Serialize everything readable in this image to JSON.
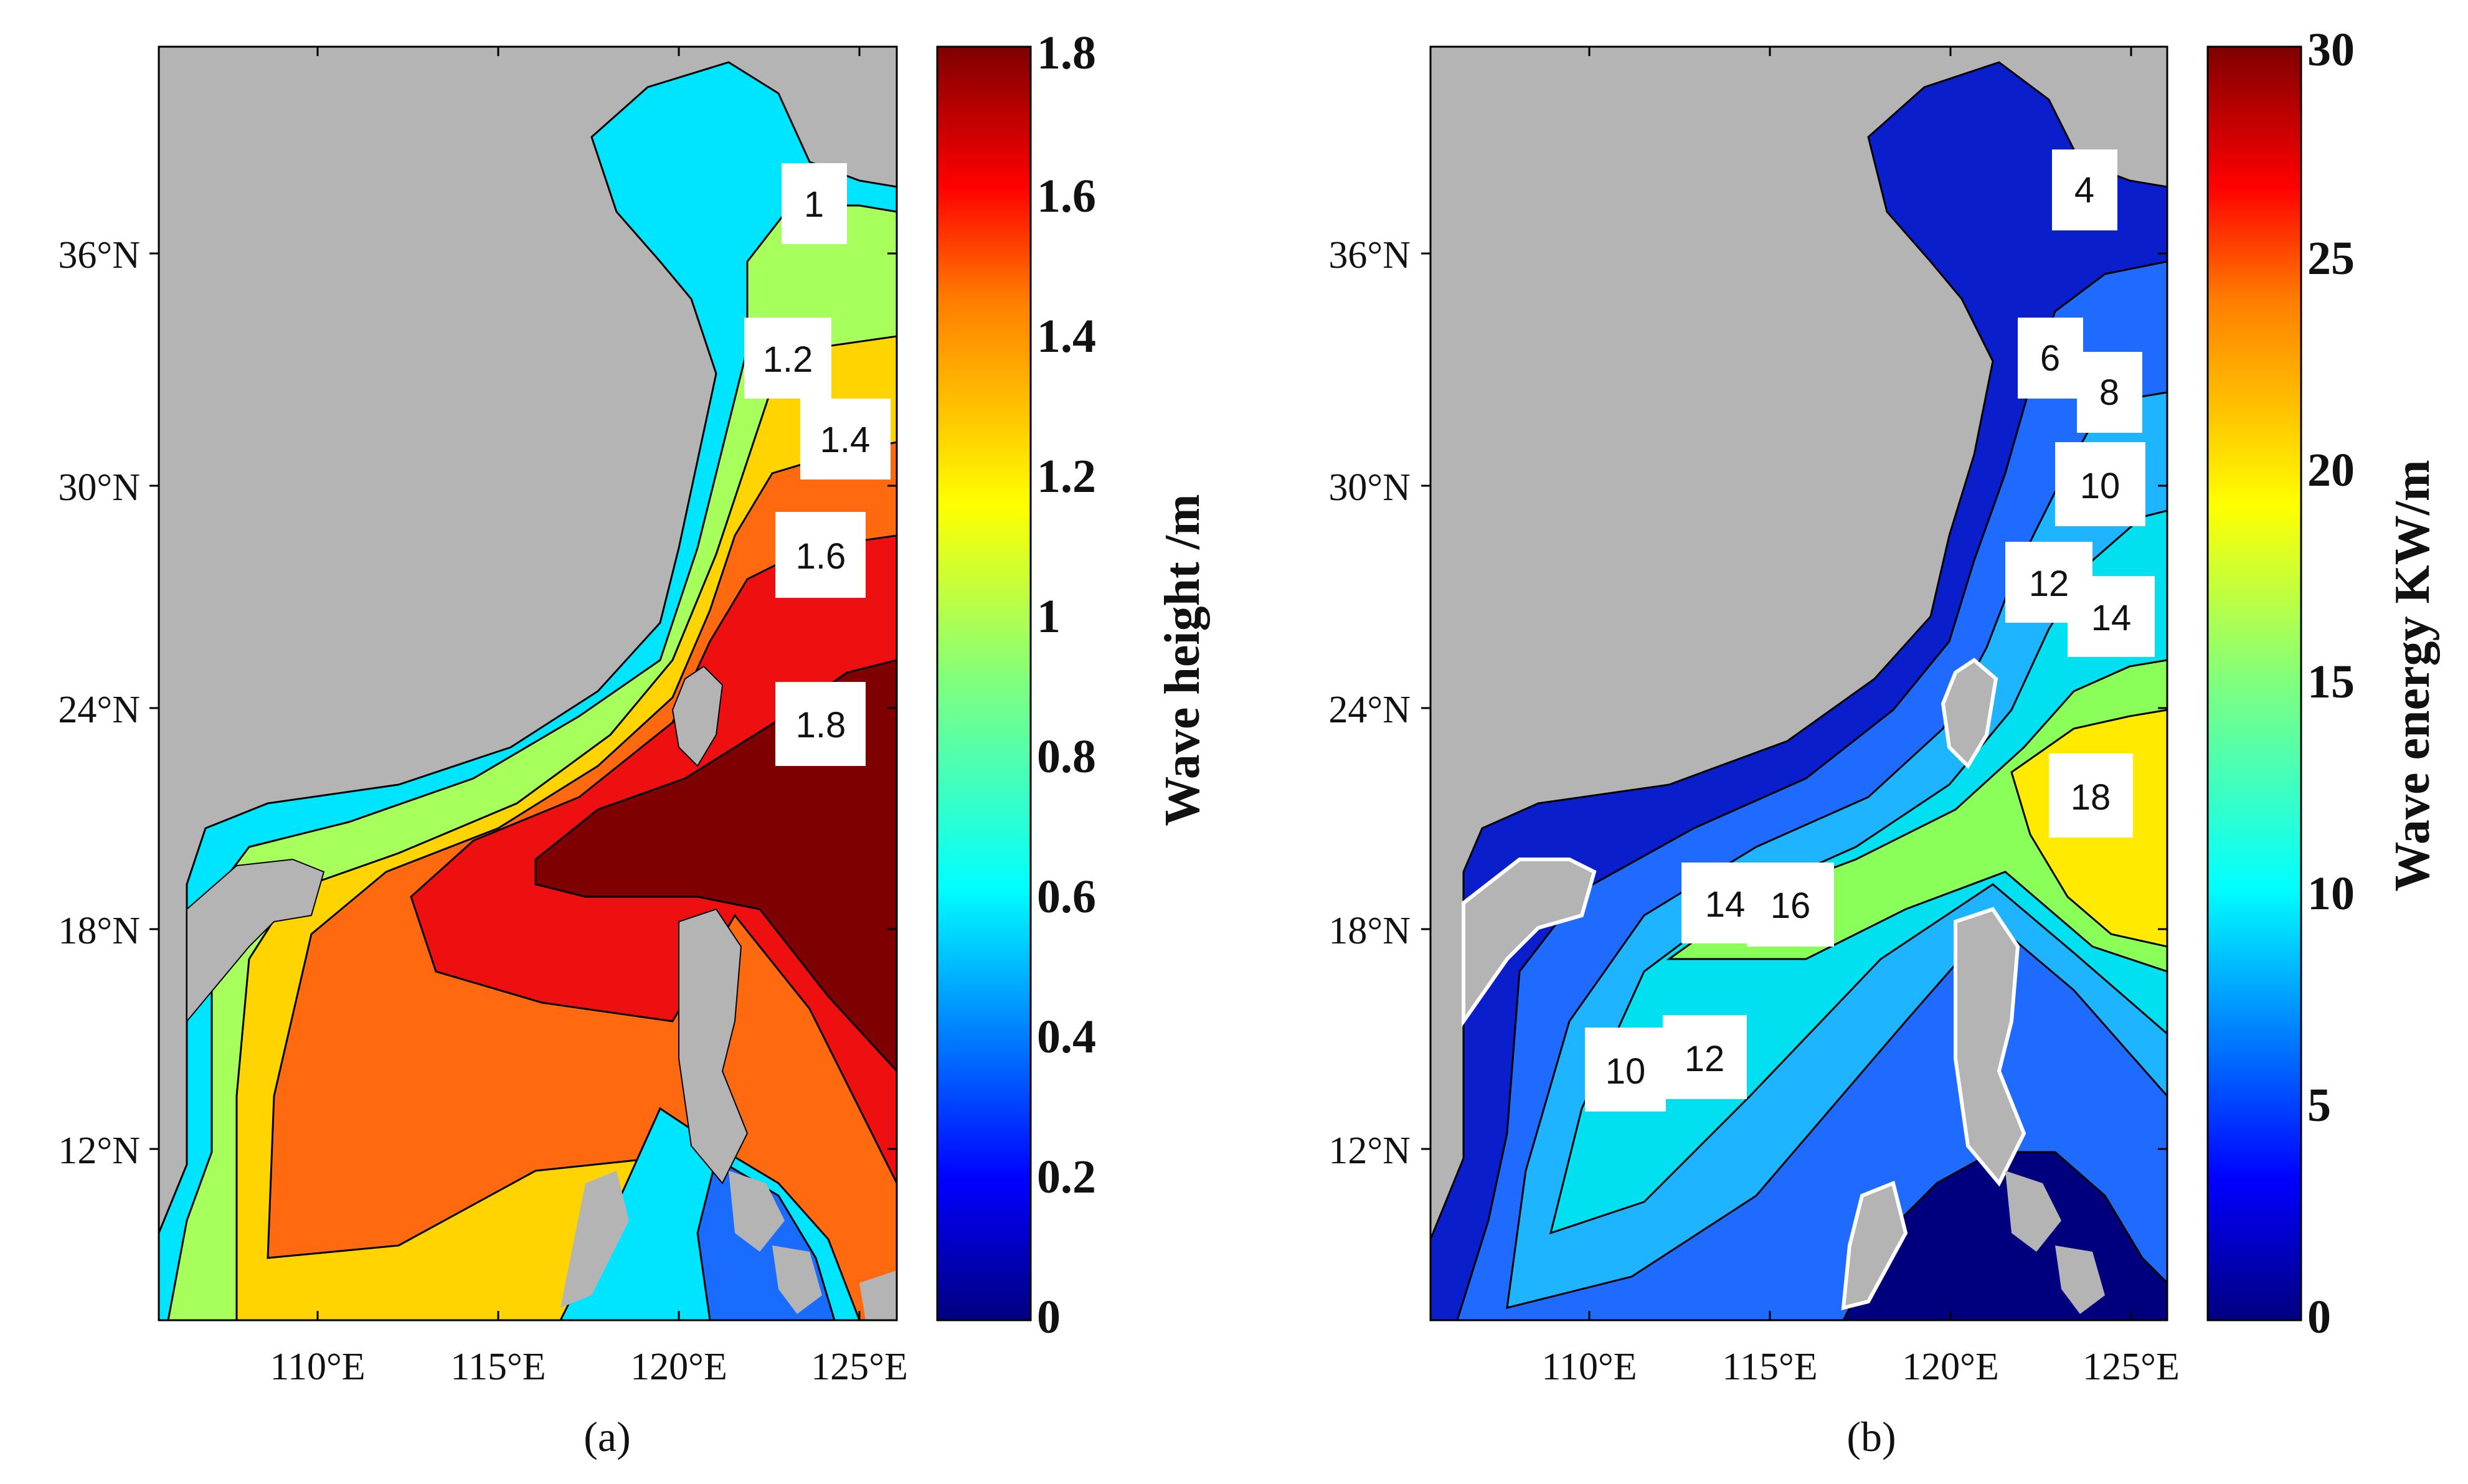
{
  "figure": {
    "panels": [
      {
        "id": "a",
        "caption": "(a)",
        "colorbar": {
          "label": "Wave height /m",
          "ticks": [
            "1.8",
            "1.6",
            "1.4",
            "1.2",
            "1",
            "0.8",
            "0.6",
            "0.4",
            "0.2",
            "0"
          ],
          "min": 0,
          "max": 1.8
        },
        "contour_labels": [
          "1",
          "1.2",
          "1.4",
          "1.6",
          "1.8"
        ]
      },
      {
        "id": "b",
        "caption": "(b)",
        "colorbar": {
          "label": "Wave energy KW/m",
          "ticks": [
            "30",
            "25",
            "20",
            "15",
            "10",
            "5",
            "0"
          ],
          "min": 0,
          "max": 30
        },
        "contour_labels": [
          "4",
          "6",
          "8",
          "10",
          "12",
          "14",
          "18",
          "14",
          "16",
          "10",
          "12"
        ]
      }
    ],
    "axes": {
      "lat_ticks": [
        "36°N",
        "30°N",
        "24°N",
        "18°N",
        "12°N"
      ],
      "lon_ticks": [
        "110°E",
        "115°E",
        "120°E",
        "125°E"
      ]
    },
    "colors": {
      "land": "#b4b4b4",
      "jet_scale": [
        "#00007f",
        "#0000ff",
        "#007fff",
        "#00ffff",
        "#7fff7f",
        "#ffff00",
        "#ff7f00",
        "#ff0000",
        "#7f0000"
      ]
    }
  }
}
